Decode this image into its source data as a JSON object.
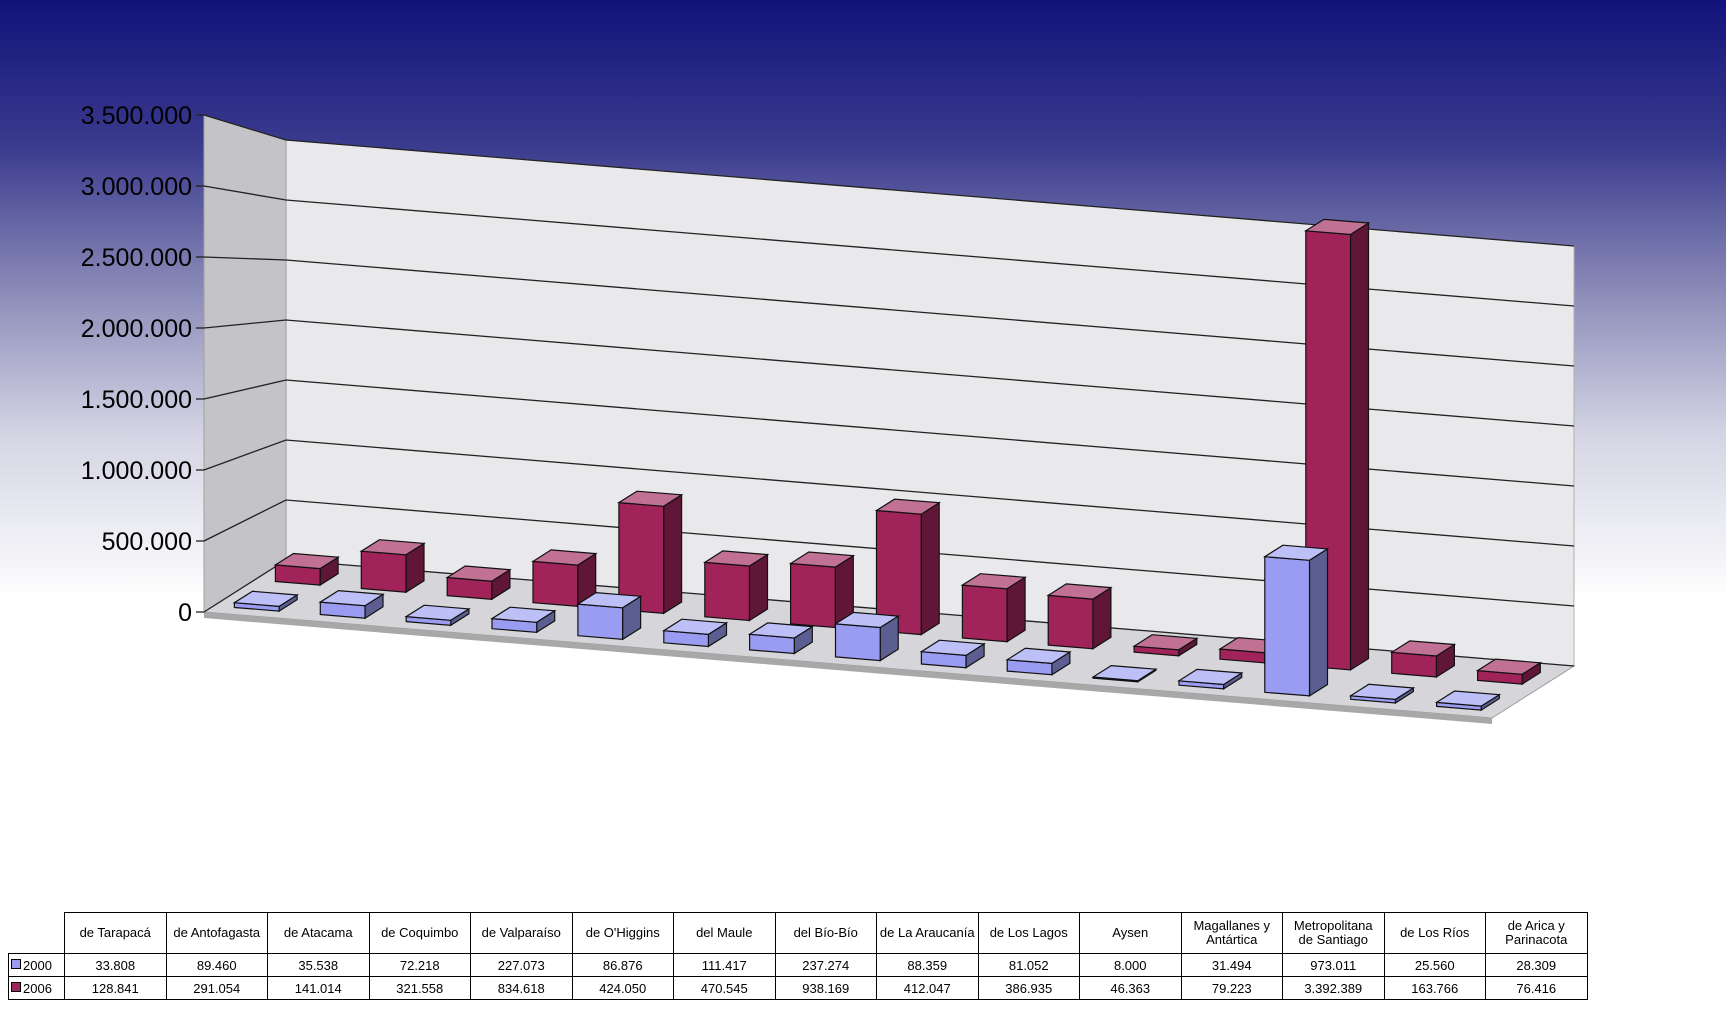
{
  "colors": {
    "series_2000": "#9a9cf2",
    "series_2006": "#a0245a"
  },
  "chart_data": {
    "type": "bar",
    "title": "",
    "xlabel": "",
    "ylabel": "",
    "ylim": [
      0,
      3500000
    ],
    "ytick_values": [
      0,
      500000,
      1000000,
      1500000,
      2000000,
      2500000,
      3000000,
      3500000
    ],
    "ytick_labels": [
      "0",
      "500.000",
      "1.000.000",
      "1.500.000",
      "2.000.000",
      "2.500.000",
      "3.000.000",
      "3.500.000"
    ],
    "grid": true,
    "legend": "data-table",
    "categories": [
      "de Tarapacá",
      "de Antofagasta",
      "de Atacama",
      "de Coquimbo",
      "de Valparaíso",
      "de O'Higgins",
      "del Maule",
      "del Bío-Bío",
      "de La Araucanía",
      "de Los Lagos",
      "Aysen",
      "Magallanes y Antártica",
      "Metropolitana de Santiago",
      "de Los Ríos",
      "de Arica y Parinacota"
    ],
    "series": [
      {
        "name": "2000",
        "values": [
          33808,
          89460,
          35538,
          72218,
          227073,
          86876,
          111417,
          237274,
          88359,
          81052,
          8000,
          31494,
          973011,
          25560,
          28309
        ],
        "labels": [
          "33.808",
          "89.460",
          "35.538",
          "72.218",
          "227.073",
          "86.876",
          "111.417",
          "237.274",
          "88.359",
          "81.052",
          "8.000",
          "31.494",
          "973.011",
          "25.560",
          "28.309"
        ]
      },
      {
        "name": "2006",
        "values": [
          128841,
          291054,
          141014,
          321558,
          834618,
          424050,
          470545,
          938169,
          412047,
          386935,
          46363,
          79223,
          3392389,
          163766,
          76416
        ],
        "labels": [
          "128.841",
          "291.054",
          "141.014",
          "321.558",
          "834.618",
          "424.050",
          "470.545",
          "938.169",
          "412.047",
          "386.935",
          "46.363",
          "79.223",
          "3.392.389",
          "163.766",
          "76.416"
        ]
      }
    ]
  }
}
